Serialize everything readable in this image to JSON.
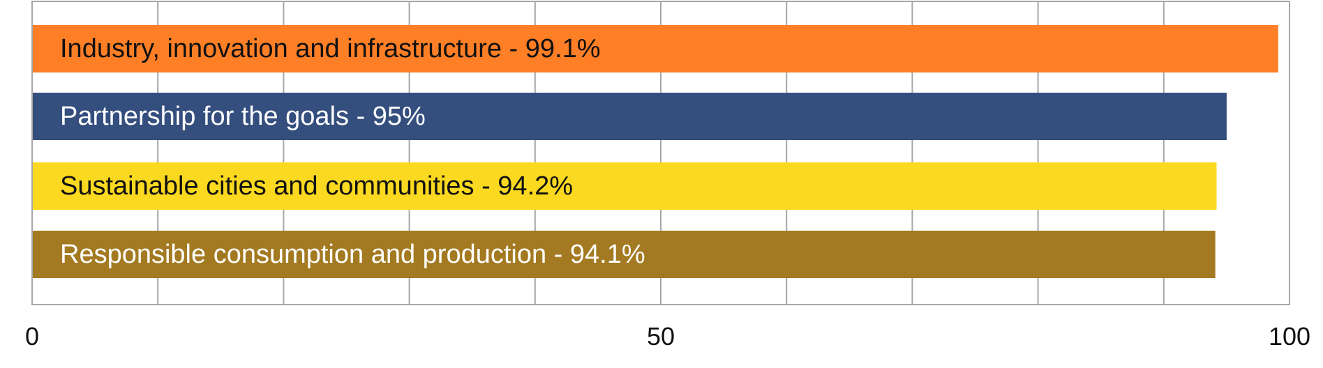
{
  "chart_data": {
    "type": "bar",
    "orientation": "horizontal",
    "xlim": [
      0,
      100
    ],
    "grid": true,
    "x_tick_labels": [
      "0",
      "50",
      "100"
    ],
    "bars": [
      {
        "label": "Industry, innovation and infrastructure - 99.1%",
        "value": 99.1,
        "color": "#FF7F27",
        "label_color": "#111111"
      },
      {
        "label": "Partnership for the goals - 95%",
        "value": 95,
        "color": "#344E7E",
        "label_color": "#FFFFFF"
      },
      {
        "label": "Sustainable cities and communities - 94.2%",
        "value": 94.2,
        "color": "#FBD920",
        "label_color": "#111111"
      },
      {
        "label": "Responsible consumption and production - 94.1%",
        "value": 94.1,
        "color": "#A37A21",
        "label_color": "#FFFFFF"
      }
    ]
  }
}
